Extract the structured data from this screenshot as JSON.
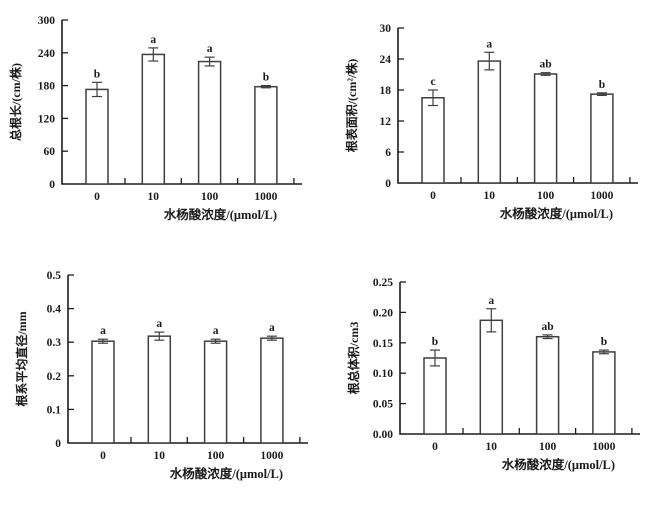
{
  "figure": {
    "description": "Four-panel bar figure of root traits under salicylic acid treatments",
    "shared_xlabel": "水杨酸浓度/(μmol/L)",
    "bar_fill": "#ffffff",
    "bar_stroke": "#3f3f3f",
    "axis_color": "#1c1c1c",
    "text_color": "#1a1a1a"
  },
  "chart_data": [
    {
      "type": "bar",
      "title": "",
      "ylabel": "总根长/(cm/株)",
      "xlabel": "水杨酸浓度/(μmol/L)",
      "categories": [
        "0",
        "10",
        "100",
        "1000"
      ],
      "values": [
        173,
        237,
        224,
        178
      ],
      "errors": [
        13,
        12,
        8,
        2
      ],
      "sig_letters": [
        "b",
        "a",
        "a",
        "b"
      ],
      "ylim": [
        0,
        300
      ],
      "yticks": [
        "0",
        "60",
        "120",
        "180",
        "240",
        "300"
      ],
      "grid": false,
      "legend": "none"
    },
    {
      "type": "bar",
      "title": "",
      "ylabel": "根表面积/(cm²/株)",
      "xlabel": "水杨酸浓度/(μmol/L)",
      "categories": [
        "0",
        "10",
        "100",
        "1000"
      ],
      "values": [
        16.5,
        23.6,
        21.1,
        17.2
      ],
      "errors": [
        1.5,
        1.7,
        0.25,
        0.25
      ],
      "sig_letters": [
        "c",
        "a",
        "ab",
        "b"
      ],
      "ylim": [
        0,
        30
      ],
      "yticks": [
        "0",
        "6",
        "12",
        "18",
        "24",
        "30"
      ],
      "grid": false,
      "legend": "none"
    },
    {
      "type": "bar",
      "title": "",
      "ylabel": "根系平均直径/mm",
      "xlabel": "水杨酸浓度/(μmol/L)",
      "categories": [
        "0",
        "10",
        "100",
        "1000"
      ],
      "values": [
        0.303,
        0.318,
        0.303,
        0.312
      ],
      "errors": [
        0.006,
        0.012,
        0.006,
        0.006
      ],
      "sig_letters": [
        "a",
        "a",
        "a",
        "a"
      ],
      "ylim": [
        0,
        0.5
      ],
      "yticks": [
        "0",
        "0.1",
        "0.2",
        "0.3",
        "0.4",
        "0.5"
      ],
      "grid": false,
      "legend": "none"
    },
    {
      "type": "bar",
      "title": "",
      "ylabel": "根总体积/cm3",
      "xlabel": "水杨酸浓度/(μmol/L)",
      "categories": [
        "0",
        "10",
        "100",
        "1000"
      ],
      "values": [
        0.125,
        0.187,
        0.16,
        0.135
      ],
      "errors": [
        0.013,
        0.019,
        0.003,
        0.003
      ],
      "sig_letters": [
        "b",
        "a",
        "ab",
        "b"
      ],
      "ylim": [
        0,
        0.25
      ],
      "yticks": [
        "0.00",
        "0.05",
        "0.10",
        "0.15",
        "0.20",
        "0.25"
      ],
      "grid": false,
      "legend": "none"
    }
  ]
}
